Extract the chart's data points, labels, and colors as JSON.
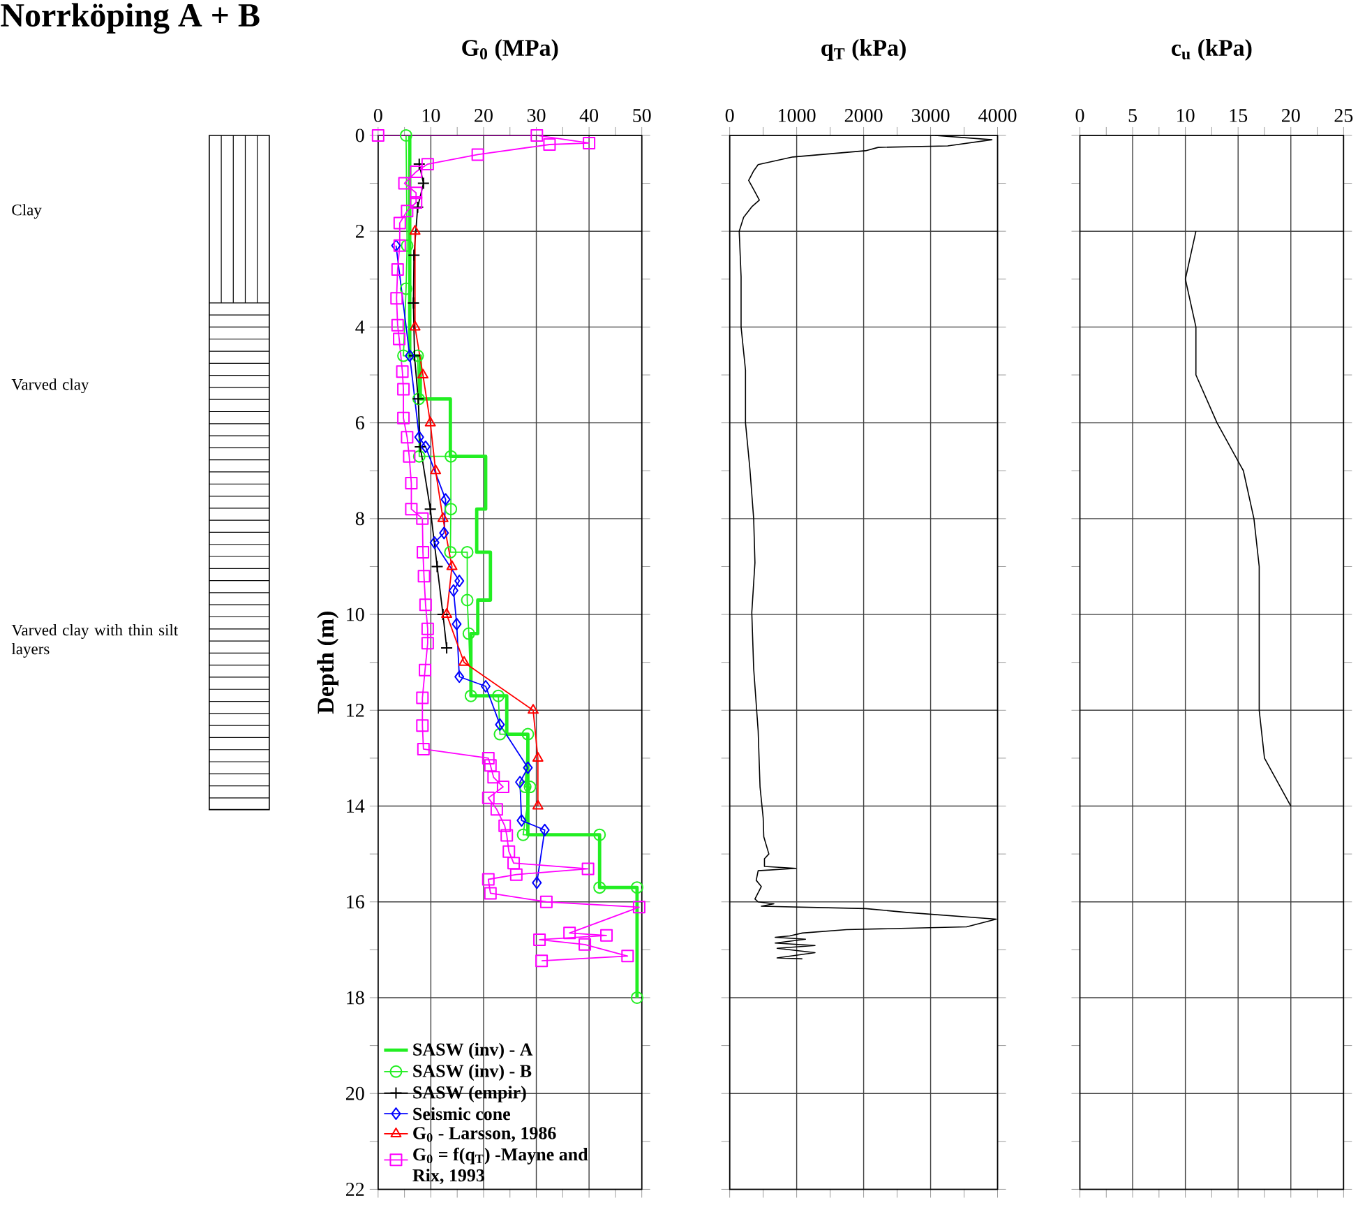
{
  "chart_data": [
    {
      "type": "line",
      "title": "Norrköping A + B",
      "xlabel": "G$_{0}$ (MPa)",
      "ylabel": "Depth (m)",
      "annotations": [
        "Clay",
        "Varved clay",
        "Varved clay with thin silt layers"
      ],
      "xlim": [
        0,
        50
      ],
      "ylim": [
        22,
        0
      ],
      "xticks": [
        0,
        {
          "value": 5,
          "label": null
        },
        10,
        {
          "value": 15,
          "label": null
        },
        20,
        {
          "value": 25,
          "label": null
        },
        30,
        {
          "value": 35,
          "label": null
        },
        40,
        {
          "value": 45,
          "label": null
        },
        50
      ],
      "yticks": [
        0,
        {
          "value": 1,
          "label": null
        },
        2,
        {
          "value": 3,
          "label": null
        },
        4,
        {
          "value": 5,
          "label": null
        },
        6,
        {
          "value": 7,
          "label": null
        },
        8,
        {
          "value": 9,
          "label": null
        },
        10,
        {
          "value": 11,
          "label": null
        },
        12,
        {
          "value": 13,
          "label": null
        },
        14,
        {
          "value": 15,
          "label": null
        },
        16,
        {
          "value": 17,
          "label": null
        },
        18,
        {
          "value": 19,
          "label": null
        },
        20,
        {
          "value": 21,
          "label": null
        },
        22
      ],
      "grid": true,
      "legend": "bottom left",
      "line_style": "solid",
      "series": [
        {
          "name": "SASW (inv) - A",
          "color": "#22ee22",
          "marker": "none",
          "x": [
            6.0,
            6.0,
            8.0,
            8.0,
            13.7,
            13.7,
            20.4,
            20.4,
            18.7,
            18.7,
            21.3,
            21.3,
            18.9,
            18.9,
            17.6,
            17.6,
            24.4,
            24.4,
            28.4,
            28.4,
            42.0,
            42.0,
            49.1,
            49.1
          ],
          "values": [
            0,
            4.6,
            4.6,
            5.5,
            5.5,
            6.7,
            6.7,
            7.8,
            7.8,
            8.7,
            8.7,
            9.7,
            9.7,
            10.4,
            10.4,
            11.7,
            11.7,
            12.5,
            12.5,
            14.6,
            14.6,
            15.7,
            15.7,
            18.0
          ]
        },
        {
          "name": "SASW (inv) - B",
          "color": "#22ee22",
          "marker": "circle",
          "x": [
            5.3,
            5.5,
            5.3,
            4.8,
            7.5,
            7.7,
            7.8,
            13.8,
            13.8,
            13.7,
            16.9,
            16.9,
            17.2,
            17.6,
            22.8,
            23.1,
            28.4,
            27.9,
            28.8,
            27.5,
            42.0,
            42.0,
            49.1,
            49.1
          ],
          "values": [
            0,
            2.3,
            3.2,
            4.6,
            4.6,
            5.5,
            6.7,
            6.7,
            7.8,
            8.7,
            8.7,
            9.7,
            10.4,
            11.7,
            11.7,
            12.5,
            12.5,
            13.6,
            13.6,
            14.6,
            14.6,
            15.7,
            15.7,
            18.0
          ]
        },
        {
          "name": "SASW (empir)",
          "color": "#000000",
          "marker": "cross",
          "x": [
            7.8,
            8.6,
            7.5,
            6.8,
            6.7,
            6.9,
            7.6,
            8.0,
            9.9,
            11.2,
            12.3,
            13.0
          ],
          "values": [
            0.6,
            1.0,
            1.5,
            2.5,
            3.5,
            4.6,
            5.5,
            6.5,
            7.8,
            9.0,
            10.0,
            10.7
          ]
        },
        {
          "name": "Seismic cone",
          "color": "#0000ff",
          "marker": "diamond",
          "x": [
            3.4,
            6.0,
            7.8,
            9.0,
            12.8,
            12.5,
            10.7,
            15.4,
            14.3,
            14.9,
            15.4,
            20.4,
            23.1,
            28.4,
            26.9,
            27.2,
            31.6,
            30.1
          ],
          "values": [
            2.3,
            4.6,
            6.3,
            6.5,
            7.6,
            8.3,
            8.5,
            9.3,
            9.5,
            10.2,
            11.3,
            11.5,
            12.3,
            13.2,
            13.5,
            14.3,
            14.5,
            15.6
          ]
        },
        {
          "name": "G$_{0}$ - Larsson, 1986",
          "color": "#ff0000",
          "marker": "triangle",
          "x": [
            7.0,
            7.0,
            8.5,
            9.9,
            10.9,
            12.3,
            14.0,
            13.0,
            16.3,
            29.4,
            30.3,
            30.3
          ],
          "values": [
            2.0,
            4.0,
            5.0,
            6.0,
            7.0,
            8.0,
            9.0,
            10.0,
            11.0,
            12.0,
            13.0,
            14.0
          ]
        },
        {
          "name": "G$_{0}$ = f(q$_{T}$) -Mayne and Rix, 1993",
          "color": "#ff00ff",
          "marker": "square",
          "x": [
            0,
            30.1,
            40.0,
            32.5,
            18.9,
            9.4,
            7.2,
            5.0,
            7.2,
            7.2,
            5.5,
            4.1,
            4.1,
            3.7,
            3.5,
            3.7,
            4.0,
            4.6,
            4.8,
            4.8,
            5.5,
            5.9,
            6.3,
            6.3,
            8.4,
            8.5,
            8.7,
            9.0,
            9.4,
            9.4,
            8.9,
            8.4,
            8.4,
            8.6,
            20.9,
            21.3,
            21.9,
            23.7,
            20.9,
            22.5,
            24.0,
            24.4,
            24.8,
            25.7,
            39.8,
            26.2,
            20.9,
            21.3,
            31.9,
            49.5,
            36.3,
            43.3,
            30.6,
            39.2,
            47.3,
            31.0
          ],
          "values": [
            0,
            0,
            0.16,
            0.19,
            0.4,
            0.6,
            0.76,
            1.0,
            1.2,
            1.4,
            1.58,
            1.83,
            2.3,
            2.8,
            3.4,
            3.96,
            4.25,
            4.93,
            5.3,
            5.9,
            6.3,
            6.7,
            7.26,
            7.8,
            8.0,
            8.7,
            9.2,
            9.8,
            10.3,
            10.6,
            11.16,
            11.74,
            12.32,
            12.81,
            13.0,
            13.15,
            13.4,
            13.6,
            13.83,
            14.07,
            14.41,
            14.61,
            14.95,
            15.19,
            15.31,
            15.43,
            15.53,
            15.82,
            16.0,
            16.11,
            16.65,
            16.7,
            16.79,
            16.89,
            17.13,
            17.23
          ]
        }
      ]
    },
    {
      "type": "line",
      "xlabel": "q$_{T}$  (kPa)",
      "xlim": [
        0,
        4000
      ],
      "ylim": [
        22,
        0
      ],
      "tick_labels": "x",
      "grid": true,
      "xticks": [
        0,
        {
          "value": 500,
          "label": null
        },
        1000,
        {
          "value": 1500,
          "label": null
        },
        2000,
        {
          "value": 2500,
          "label": null
        },
        3000,
        {
          "value": 3500,
          "label": null
        },
        4000
      ],
      "yticks": [
        0,
        {
          "value": 1,
          "label": null
        },
        2,
        {
          "value": 3,
          "label": null
        },
        4,
        {
          "value": 5,
          "label": null
        },
        6,
        {
          "value": 7,
          "label": null
        },
        8,
        {
          "value": 9,
          "label": null
        },
        10,
        {
          "value": 11,
          "label": null
        },
        12,
        {
          "value": 13,
          "label": null
        },
        14,
        {
          "value": 15,
          "label": null
        },
        16,
        {
          "value": 17,
          "label": null
        },
        18,
        {
          "value": 19,
          "label": null
        },
        20,
        {
          "value": 21,
          "label": null
        },
        22
      ],
      "series": [
        {
          "color": "#000000",
          "x": [
            3066,
            3915,
            3255,
            2217,
            2028,
            943,
            425,
            358,
            283,
            358,
            443,
            330,
            208,
            142,
            170,
            170,
            236,
            236,
            302,
            358,
            377,
            330,
            358,
            425,
            453,
            500,
            509,
            585,
            519,
            519,
            991,
            425,
            396,
            472,
            377,
            425,
            660,
            472,
            2028,
            2642,
            3981,
            3538,
            1745,
            1085,
            896,
            679,
            1132,
            679,
            1274,
            708,
            1274,
            708,
            1085
          ],
          "values": [
            0,
            0.09,
            0.22,
            0.25,
            0.32,
            0.45,
            0.61,
            0.74,
            0.94,
            1.13,
            1.35,
            1.49,
            1.71,
            2.0,
            2.95,
            4.0,
            4.9,
            6.0,
            6.97,
            8.0,
            8.92,
            9.96,
            11.13,
            12.43,
            13.6,
            14.25,
            14.64,
            15.0,
            15.1,
            15.26,
            15.3,
            15.35,
            15.55,
            15.68,
            15.94,
            16.0,
            16.04,
            16.09,
            16.14,
            16.22,
            16.36,
            16.52,
            16.58,
            16.65,
            16.71,
            16.74,
            16.78,
            16.86,
            16.91,
            16.97,
            17.06,
            17.17,
            17.19
          ]
        }
      ]
    },
    {
      "type": "line",
      "xlabel": "c$_{u}$ (kPa)",
      "xlim": [
        0,
        25
      ],
      "ylim": [
        22,
        0
      ],
      "tick_labels": "x",
      "grid": true,
      "xticks": [
        0,
        {
          "value": 2.5,
          "label": null
        },
        5,
        {
          "value": 7.5,
          "label": null
        },
        10,
        {
          "value": 12.5,
          "label": null
        },
        15,
        {
          "value": 17.5,
          "label": null
        },
        20,
        {
          "value": 22.5,
          "label": null
        },
        25
      ],
      "yticks": [
        0,
        {
          "value": 1,
          "label": null
        },
        2,
        {
          "value": 3,
          "label": null
        },
        4,
        {
          "value": 5,
          "label": null
        },
        6,
        {
          "value": 7,
          "label": null
        },
        8,
        {
          "value": 9,
          "label": null
        },
        10,
        {
          "value": 11,
          "label": null
        },
        12,
        {
          "value": 13,
          "label": null
        },
        14,
        {
          "value": 15,
          "label": null
        },
        16,
        {
          "value": 17,
          "label": null
        },
        18,
        {
          "value": 19,
          "label": null
        },
        20,
        {
          "value": 21,
          "label": null
        },
        22
      ],
      "series": [
        {
          "color": "#000000",
          "x": [
            11,
            10,
            11,
            11,
            13,
            15.5,
            16.5,
            17,
            17,
            17.5,
            20
          ],
          "values": [
            2,
            3,
            4,
            5,
            6,
            7,
            8,
            9,
            12,
            13,
            14
          ]
        }
      ]
    }
  ]
}
